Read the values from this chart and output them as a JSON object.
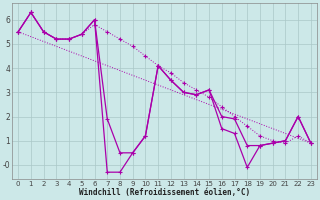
{
  "xlabel": "Windchill (Refroidissement éolien,°C)",
  "bg_color": "#cce8e8",
  "line_color": "#aa00aa",
  "grid_color": "#aac8c8",
  "xlim": [
    -0.5,
    23.5
  ],
  "ylim": [
    -0.6,
    6.7
  ],
  "xticks": [
    0,
    1,
    2,
    3,
    4,
    5,
    6,
    7,
    8,
    9,
    10,
    11,
    12,
    13,
    14,
    15,
    16,
    17,
    18,
    19,
    20,
    21,
    22,
    23
  ],
  "yticks": [
    0,
    1,
    2,
    3,
    4,
    5,
    6
  ],
  "ytick_labels": [
    "-0",
    "1",
    "2",
    "3",
    "4",
    "5",
    "6"
  ],
  "line1_x": [
    0,
    1,
    2,
    3,
    4,
    5,
    6,
    7,
    8,
    9,
    10,
    11,
    12,
    13,
    14,
    15,
    16,
    17,
    18,
    19,
    20,
    21,
    22,
    23
  ],
  "line1_y": [
    5.5,
    6.3,
    5.5,
    5.2,
    5.2,
    5.4,
    5.8,
    5.5,
    5.2,
    4.9,
    4.5,
    4.1,
    3.8,
    3.4,
    3.1,
    2.8,
    2.4,
    2.0,
    1.6,
    1.2,
    1.0,
    0.9,
    1.2,
    0.9
  ],
  "line2_x": [
    0,
    1,
    2,
    3,
    4,
    5,
    6,
    7,
    8,
    9,
    10,
    11,
    12,
    13,
    14,
    15,
    16,
    17,
    18,
    19,
    20,
    21,
    22,
    23
  ],
  "line2_y": [
    5.5,
    6.3,
    5.5,
    5.2,
    5.2,
    5.4,
    6.0,
    1.9,
    0.5,
    0.5,
    1.2,
    4.1,
    3.5,
    3.0,
    2.9,
    3.1,
    2.0,
    1.9,
    0.8,
    0.8,
    0.9,
    1.0,
    2.0,
    0.9
  ],
  "line3_x": [
    0,
    1,
    2,
    3,
    4,
    5,
    6,
    7,
    8,
    9,
    10,
    11,
    12,
    13,
    14,
    15,
    16,
    17,
    18,
    19,
    20,
    21,
    22,
    23
  ],
  "line3_y": [
    5.5,
    6.3,
    5.5,
    5.2,
    5.2,
    5.4,
    6.0,
    -0.3,
    -0.3,
    0.5,
    1.2,
    4.1,
    3.5,
    3.0,
    2.9,
    3.1,
    1.5,
    1.3,
    -0.1,
    0.8,
    0.9,
    1.0,
    2.0,
    0.9
  ],
  "line4_x": [
    0,
    23
  ],
  "line4_y": [
    5.5,
    0.9
  ]
}
